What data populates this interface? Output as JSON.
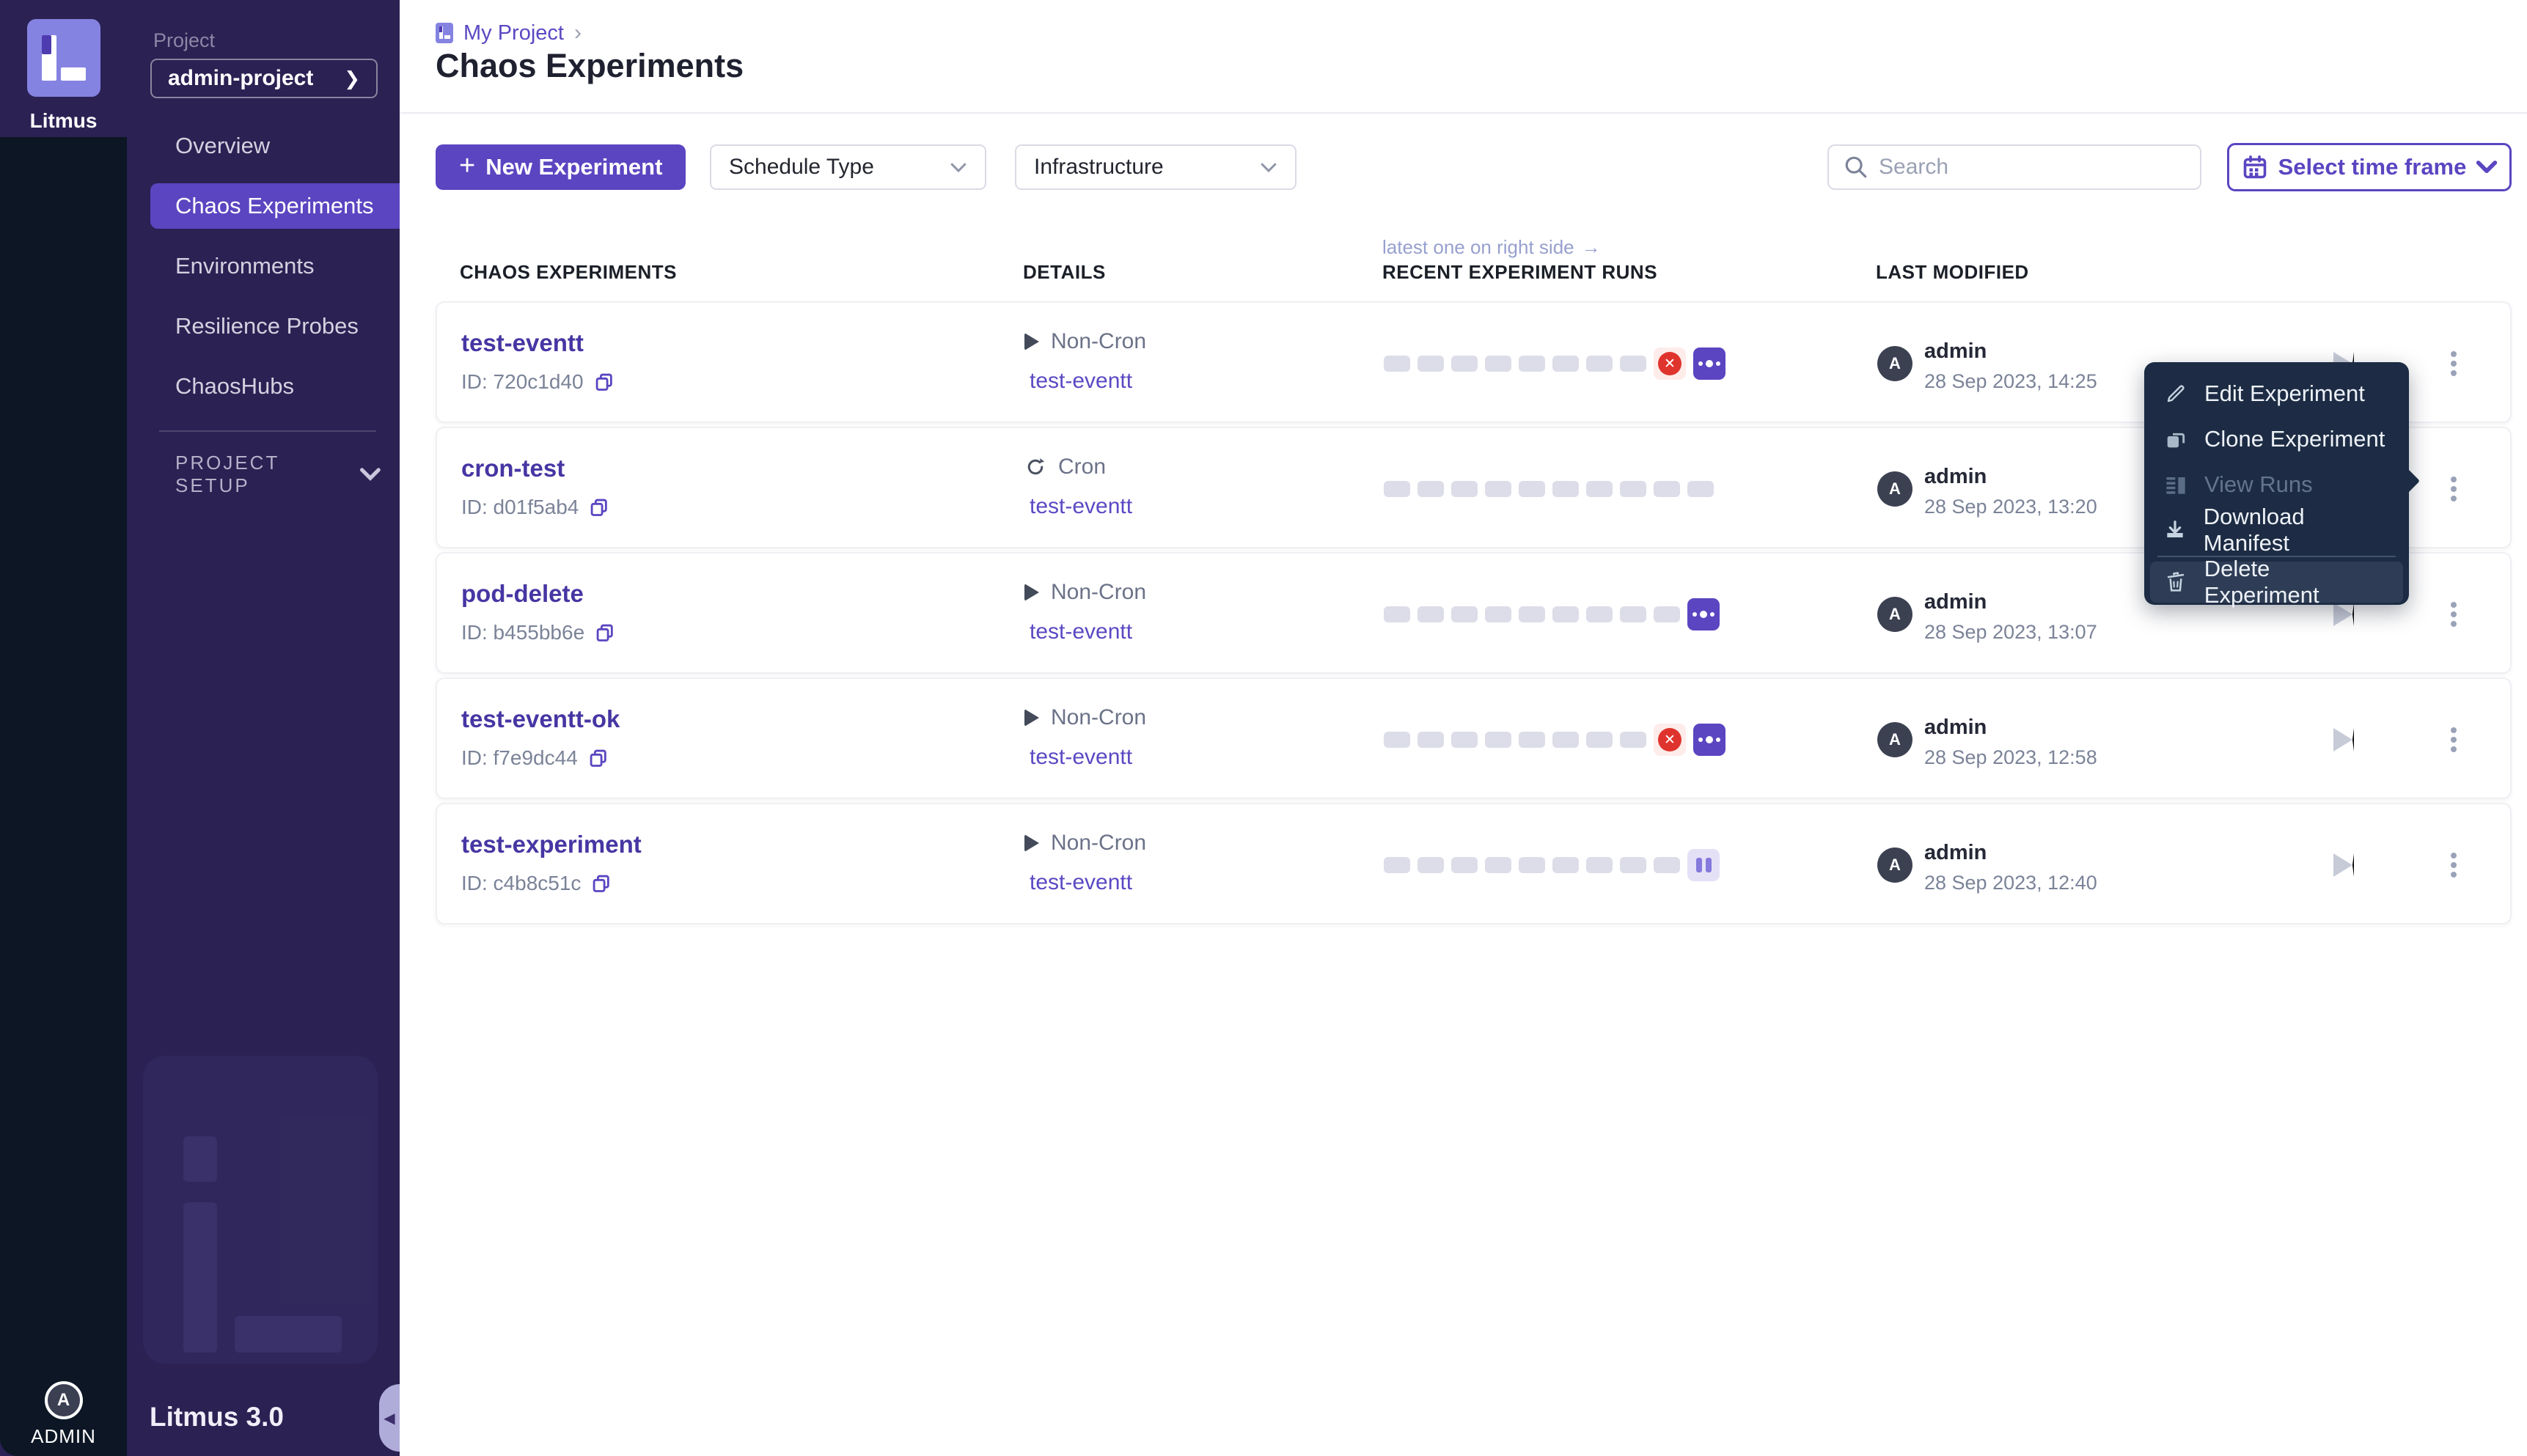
{
  "colors": {
    "accent": "#5b45c1",
    "experiment_name": "#4636a3",
    "link": "#5a49c3",
    "sidebar_bg": "#2b2153",
    "rail_bg": "#0c1624",
    "menu_bg": "#1d2c44",
    "failed_red": "#df342d",
    "failed_bg": "#fdecea",
    "paused_bg": "#e4e0f6",
    "paused_bar": "#8579dd",
    "run_pill": "#dcdde8",
    "logo_lavender": "#8583e1"
  },
  "icons": {
    "plus": "+",
    "project_caret": "❯",
    "breadcrumb_sep": "›",
    "annotation_arrow": "→",
    "collapse": "◀"
  },
  "sidebar": {
    "brand": "Litmus",
    "project_label": "Project",
    "project_name": "admin-project",
    "nav": [
      {
        "label": "Overview"
      },
      {
        "label": "Chaos Experiments"
      },
      {
        "label": "Environments"
      },
      {
        "label": "Resilience Probes"
      },
      {
        "label": "ChaosHubs"
      }
    ],
    "project_setup": "PROJECT SETUP",
    "version": "Litmus 3.0",
    "admin_label": "ADMIN",
    "avatar_letter": "A"
  },
  "header": {
    "breadcrumb": "My Project",
    "title": "Chaos Experiments"
  },
  "toolbar": {
    "new_experiment": "New Experiment",
    "schedule_type": "Schedule Type",
    "infrastructure": "Infrastructure",
    "search_placeholder": "Search",
    "time_frame": "Select time frame"
  },
  "table": {
    "annotation": "latest one on right side",
    "columns": [
      "CHAOS EXPERIMENTS",
      "DETAILS",
      "RECENT EXPERIMENT RUNS",
      "LAST MODIFIED"
    ],
    "rows": [
      {
        "name": "test-eventt",
        "id": "ID: 720c1d40",
        "schedule": "Non-Cron",
        "schedule_type": "non-cron",
        "infra": "test-eventt",
        "runs": [
          "pending",
          "pending",
          "pending",
          "pending",
          "pending",
          "pending",
          "pending",
          "pending",
          "failed",
          "running"
        ],
        "modified_by": "admin",
        "modified_at": "28 Sep 2023, 14:25",
        "avatar_letter": "A"
      },
      {
        "name": "cron-test",
        "id": "ID: d01f5ab4",
        "schedule": "Cron",
        "schedule_type": "cron",
        "infra": "test-eventt",
        "runs": [
          "pending",
          "pending",
          "pending",
          "pending",
          "pending",
          "pending",
          "pending",
          "pending",
          "pending",
          "pending"
        ],
        "modified_by": "admin",
        "modified_at": "28 Sep 2023, 13:20",
        "avatar_letter": "A"
      },
      {
        "name": "pod-delete",
        "id": "ID: b455bb6e",
        "schedule": "Non-Cron",
        "schedule_type": "non-cron",
        "infra": "test-eventt",
        "runs": [
          "pending",
          "pending",
          "pending",
          "pending",
          "pending",
          "pending",
          "pending",
          "pending",
          "pending",
          "running"
        ],
        "modified_by": "admin",
        "modified_at": "28 Sep 2023, 13:07",
        "avatar_letter": "A"
      },
      {
        "name": "test-eventt-ok",
        "id": "ID: f7e9dc44",
        "schedule": "Non-Cron",
        "schedule_type": "non-cron",
        "infra": "test-eventt",
        "runs": [
          "pending",
          "pending",
          "pending",
          "pending",
          "pending",
          "pending",
          "pending",
          "pending",
          "failed",
          "running"
        ],
        "modified_by": "admin",
        "modified_at": "28 Sep 2023, 12:58",
        "avatar_letter": "A"
      },
      {
        "name": "test-experiment",
        "id": "ID: c4b8c51c",
        "schedule": "Non-Cron",
        "schedule_type": "non-cron",
        "infra": "test-eventt",
        "runs": [
          "pending",
          "pending",
          "pending",
          "pending",
          "pending",
          "pending",
          "pending",
          "pending",
          "pending",
          "paused"
        ],
        "modified_by": "admin",
        "modified_at": "28 Sep 2023, 12:40",
        "avatar_letter": "A"
      }
    ]
  },
  "menu": {
    "items": [
      {
        "label": "Edit Experiment",
        "disabled": false
      },
      {
        "label": "Clone Experiment",
        "disabled": false
      },
      {
        "label": "View Runs",
        "disabled": true
      },
      {
        "label": "Download Manifest",
        "disabled": false
      },
      {
        "label": "Delete Experiment",
        "disabled": false
      }
    ]
  }
}
